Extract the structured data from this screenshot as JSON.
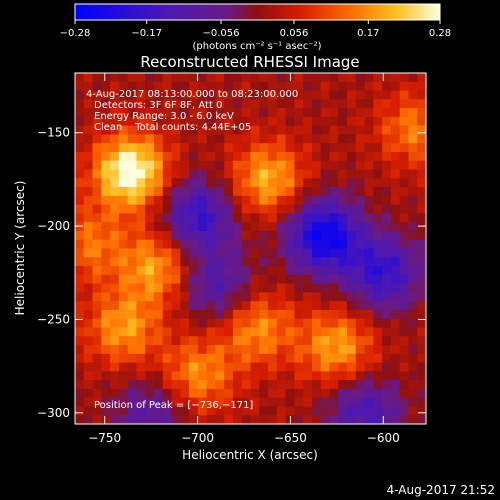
{
  "chart_data": {
    "type": "heatmap",
    "title": "Reconstructed RHESSI Image",
    "xlabel": "Heliocentric X (arcsec)",
    "ylabel": "Heliocentric Y (arcsec)",
    "xlim": [
      -766,
      -577
    ],
    "ylim": [
      -306,
      -118
    ],
    "x_ticks": [
      -750,
      -700,
      -650,
      -600
    ],
    "y_ticks": [
      -150,
      -200,
      -250,
      -300
    ],
    "x_tick_labels": [
      "−750",
      "−700",
      "−650",
      "−600"
    ],
    "y_tick_labels": [
      "−150",
      "−200",
      "−250",
      "−300"
    ],
    "colorbar": {
      "min": -0.28,
      "max": 0.28,
      "ticks": [
        -0.28,
        -0.17,
        -0.056,
        0.056,
        0.17,
        0.28
      ],
      "tick_labels": [
        "−0.28",
        "−0.17",
        "−0.056",
        "0.056",
        "0.17",
        "0.28"
      ],
      "units_label": "(photons cm⁻² s⁻¹ asec⁻²)"
    },
    "annotations": [
      "4-Aug-2017 08:13:00.000 to 08:23:00.000",
      "Detectors: 3F 6F 8F, Att 0",
      "Energy Range: 3.0 - 6.0 keV",
      "Clean    Total counts: 4.44E+05"
    ],
    "peak_label": "Position of Peak = [−736,−171]",
    "peak_position": [
      -736,
      -171
    ],
    "grid": false,
    "sources": [
      {
        "x": -736,
        "y": -171,
        "amp": 0.28
      },
      {
        "x": -722,
        "y": -222,
        "amp": 0.17
      },
      {
        "x": -740,
        "y": -255,
        "amp": 0.16
      },
      {
        "x": -700,
        "y": -280,
        "amp": 0.15
      },
      {
        "x": -758,
        "y": -210,
        "amp": 0.12
      },
      {
        "x": -662,
        "y": -175,
        "amp": 0.18
      },
      {
        "x": -668,
        "y": -255,
        "amp": 0.15
      },
      {
        "x": -625,
        "y": -265,
        "amp": 0.17
      },
      {
        "x": -583,
        "y": -148,
        "amp": 0.13
      },
      {
        "x": -700,
        "y": -195,
        "amp": -0.2
      },
      {
        "x": -632,
        "y": -205,
        "amp": -0.28
      },
      {
        "x": -600,
        "y": -225,
        "amp": -0.2
      },
      {
        "x": -610,
        "y": -300,
        "amp": -0.16
      },
      {
        "x": -690,
        "y": -232,
        "amp": -0.14
      },
      {
        "x": -725,
        "y": -300,
        "amp": -0.12
      }
    ]
  },
  "footer": {
    "timestamp": "4-Aug-2017 21:52"
  }
}
